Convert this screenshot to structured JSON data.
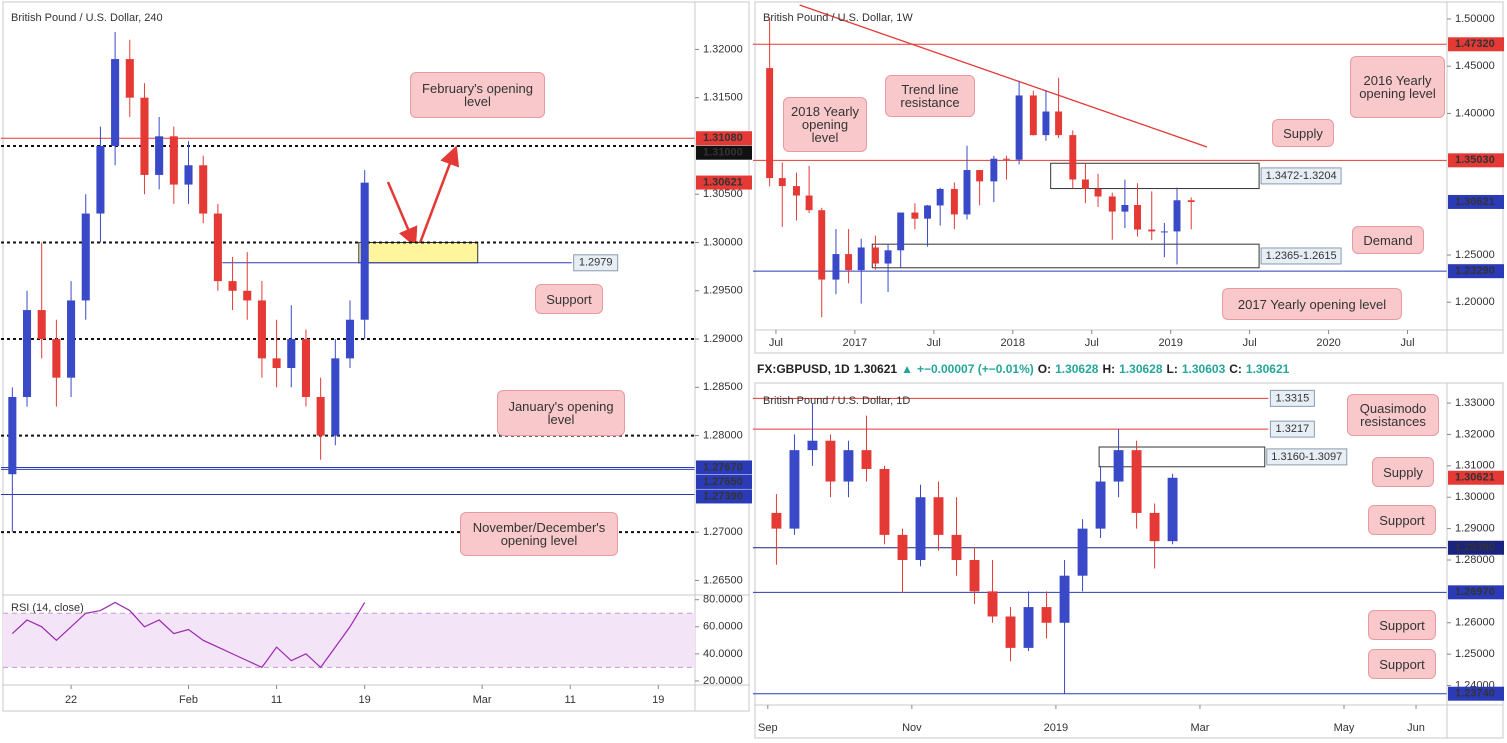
{
  "chart_data": [
    {
      "type": "candlestick",
      "title": "British Pound / U.S. Dollar, 240",
      "up_color": "#3949c8",
      "down_color": "#e53935",
      "xlim": [
        -4.5,
        42.5
      ],
      "xticks": [
        {
          "value": 0,
          "label": "22"
        },
        {
          "value": 8,
          "label": "Feb"
        },
        {
          "value": 14,
          "label": "11"
        },
        {
          "value": 20,
          "label": "19"
        },
        {
          "value": 28,
          "label": "Mar"
        },
        {
          "value": 34,
          "label": "11"
        },
        {
          "value": 40,
          "label": "19"
        }
      ],
      "ylim": [
        1.2638,
        1.3246
      ],
      "yticks": [
        {
          "value": 1.32,
          "label": "1.32000"
        },
        {
          "value": 1.315,
          "label": "1.31500"
        },
        {
          "value": 1.305,
          "label": "1.30500"
        },
        {
          "value": 1.3,
          "label": "1.30000"
        },
        {
          "value": 1.295,
          "label": "1.29500"
        },
        {
          "value": 1.29,
          "label": "1.29000"
        },
        {
          "value": 1.285,
          "label": "1.28500"
        },
        {
          "value": 1.28,
          "label": "1.28000"
        },
        {
          "value": 1.27,
          "label": "1.27000"
        },
        {
          "value": 1.265,
          "label": "1.26500"
        }
      ],
      "candles": {
        "x": [
          -4,
          -3,
          -2,
          -1,
          0,
          1,
          2,
          3,
          4,
          5,
          6,
          7,
          8,
          9,
          10,
          11,
          12,
          13,
          14,
          15,
          16,
          17,
          18,
          19,
          20
        ],
        "open": [
          1.276,
          1.284,
          1.293,
          1.29,
          1.286,
          1.294,
          1.303,
          1.31,
          1.319,
          1.315,
          1.307,
          1.311,
          1.306,
          1.308,
          1.303,
          1.296,
          1.295,
          1.294,
          1.288,
          1.287,
          1.29,
          1.284,
          1.28,
          1.288,
          1.292
        ],
        "high": [
          1.285,
          1.295,
          1.3,
          1.292,
          1.296,
          1.305,
          1.312,
          1.3218,
          1.321,
          1.3165,
          1.313,
          1.312,
          1.3105,
          1.309,
          1.304,
          1.2985,
          1.299,
          1.296,
          1.292,
          1.2935,
          1.291,
          1.286,
          1.29,
          1.294,
          1.3075
        ],
        "low": [
          1.27,
          1.283,
          1.288,
          1.283,
          1.284,
          1.292,
          1.3,
          1.308,
          1.313,
          1.305,
          1.3055,
          1.304,
          1.304,
          1.302,
          1.295,
          1.293,
          1.292,
          1.286,
          1.285,
          1.285,
          1.283,
          1.2775,
          1.279,
          1.287,
          1.29
        ],
        "close": [
          1.284,
          1.293,
          1.29,
          1.286,
          1.294,
          1.303,
          1.31,
          1.319,
          1.315,
          1.307,
          1.311,
          1.306,
          1.308,
          1.303,
          1.296,
          1.295,
          1.294,
          1.288,
          1.287,
          1.29,
          1.284,
          1.28,
          1.288,
          1.292,
          1.3062
        ]
      },
      "levels": [
        {
          "value": 1.3108,
          "color": "#e53935",
          "tag": "1.31080"
        },
        {
          "value": 1.31,
          "color": "#111111",
          "dash": true,
          "tag": "1.31000"
        },
        {
          "value": 1.3,
          "color": "#111111",
          "dash": true
        },
        {
          "value": 1.29,
          "color": "#111111",
          "dash": true
        },
        {
          "value": 1.28,
          "color": "#111111",
          "dash": true
        },
        {
          "value": 1.2767,
          "color": "#2b3bb8",
          "tag": "1.27670"
        },
        {
          "value": 1.2765,
          "color": "#2b3bb8",
          "tag": "1.27650"
        },
        {
          "value": 1.2739,
          "color": "#2b3bb8",
          "tag": "1.27390"
        },
        {
          "value": 1.27,
          "color": "#111111",
          "dash": true
        },
        {
          "value": 1.2979,
          "color": "#2b3bb8",
          "from": 10.3,
          "to": 34.1,
          "label": "1.2979"
        }
      ],
      "zones": [
        {
          "top": 1.3,
          "bottom": 1.2979,
          "x": [
            19.6,
            27.7
          ],
          "fill": "#fff59d"
        }
      ],
      "last": {
        "value": 1.30621,
        "label": "1.30621",
        "color": "#e53935"
      },
      "annotations": [
        "February's opening level",
        "Support",
        "January's opening level",
        "November/December's opening level"
      ],
      "rsi": {
        "title": "RSI (14, close)",
        "ylim": [
          17,
          82
        ],
        "band": [
          30,
          70
        ],
        "color": "#9c27b0",
        "yticks": [
          {
            "value": 80,
            "label": "80.0000"
          },
          {
            "value": 60,
            "label": "60.0000"
          },
          {
            "value": 40,
            "label": "40.0000"
          },
          {
            "value": 20,
            "label": "20.0000"
          }
        ],
        "values": [
          55,
          65,
          60,
          50,
          60,
          70,
          72,
          78,
          72,
          60,
          65,
          55,
          58,
          50,
          45,
          40,
          35,
          30,
          45,
          35,
          40,
          30,
          45,
          60,
          78
        ]
      }
    },
    {
      "type": "candlestick",
      "title": "British Pound / U.S. Dollar, 1W",
      "up_color": "#3949c8",
      "down_color": "#e53935",
      "xlim": [
        2016.38,
        2020.75
      ],
      "xticks": [
        {
          "value": 2016.5,
          "label": "Jul"
        },
        2017,
        {
          "value": 2017.5,
          "label": "Jul"
        },
        2018,
        {
          "value": 2018.5,
          "label": "Jul"
        },
        2019,
        {
          "value": 2019.5,
          "label": "Jul"
        },
        2020,
        {
          "value": 2020.5,
          "label": "Jul"
        }
      ],
      "ylim": [
        1.1706,
        1.5148
      ],
      "yticks": [
        {
          "value": 1.5,
          "label": "1.50000"
        },
        {
          "value": 1.45,
          "label": "1.45000"
        },
        {
          "value": 1.4,
          "label": "1.40000"
        },
        {
          "value": 1.25,
          "label": "1.25000"
        },
        {
          "value": 1.2,
          "label": "1.20000"
        }
      ],
      "candles": {
        "x": [
          2016.46,
          2016.54,
          2016.63,
          2016.71,
          2016.79,
          2016.88,
          2016.96,
          2017.04,
          2017.13,
          2017.21,
          2017.29,
          2017.38,
          2017.46,
          2017.54,
          2017.63,
          2017.71,
          2017.79,
          2017.88,
          2017.96,
          2018.04,
          2018.13,
          2018.21,
          2018.29,
          2018.38,
          2018.46,
          2018.54,
          2018.63,
          2018.71,
          2018.79,
          2018.88,
          2018.96,
          2019.04,
          2019.13
        ],
        "open": [
          1.448,
          1.3315,
          1.323,
          1.313,
          1.2975,
          1.224,
          1.251,
          1.234,
          1.258,
          1.241,
          1.255,
          1.295,
          1.2885,
          1.3025,
          1.32,
          1.293,
          1.34,
          1.328,
          1.352,
          1.351,
          1.419,
          1.377,
          1.402,
          1.377,
          1.33,
          1.32,
          1.312,
          1.296,
          1.303,
          1.277,
          1.275,
          1.275,
          1.308
        ],
        "high": [
          1.5018,
          1.348,
          1.3372,
          1.3445,
          1.3,
          1.2775,
          1.2775,
          1.2673,
          1.2706,
          1.2615,
          1.2905,
          1.3048,
          1.303,
          1.3213,
          1.3269,
          1.3657,
          1.34,
          1.355,
          1.355,
          1.4345,
          1.424,
          1.4245,
          1.4377,
          1.382,
          1.347,
          1.336,
          1.316,
          1.3298,
          1.326,
          1.3175,
          1.284,
          1.3215,
          1.311
        ],
        "low": [
          1.3229,
          1.2798,
          1.2866,
          1.2945,
          1.1841,
          1.2085,
          1.22,
          1.1986,
          1.2345,
          1.2109,
          1.2365,
          1.2774,
          1.2589,
          1.2812,
          1.2774,
          1.2876,
          1.3027,
          1.306,
          1.33,
          1.346,
          1.3765,
          1.371,
          1.374,
          1.3205,
          1.305,
          1.301,
          1.2662,
          1.2785,
          1.2696,
          1.2657,
          1.2477,
          1.24,
          1.2773
        ],
        "close": [
          1.3315,
          1.323,
          1.313,
          1.2975,
          1.224,
          1.251,
          1.234,
          1.258,
          1.241,
          1.255,
          1.295,
          1.2885,
          1.3025,
          1.32,
          1.293,
          1.34,
          1.328,
          1.352,
          1.351,
          1.419,
          1.377,
          1.402,
          1.377,
          1.33,
          1.32,
          1.312,
          1.296,
          1.303,
          1.277,
          1.275,
          1.275,
          1.308,
          1.3062
        ]
      },
      "levels": [
        {
          "value": 1.4732,
          "color": "#e53935",
          "tag": "1.47320"
        },
        {
          "value": 1.3503,
          "color": "#e53935",
          "tag": "1.35030"
        },
        {
          "value": 1.2329,
          "color": "#2b3bb8",
          "tag": "1.23290"
        }
      ],
      "zones": [
        {
          "label": "1.3472-1.3204",
          "top": 1.3472,
          "bottom": 1.3204,
          "x": [
            2018.24,
            2019.56
          ]
        },
        {
          "label": "1.2365-1.2615",
          "top": 1.2615,
          "bottom": 1.2365,
          "x": [
            2017.11,
            2019.56
          ]
        }
      ],
      "trendlines": [
        {
          "x": [
            2016.65,
            2019.23
          ],
          "y": [
            1.5148,
            1.3644
          ],
          "color": "#e53935"
        }
      ],
      "last": {
        "value": 1.30621,
        "label": "1.30621",
        "color": "#2b3bb8"
      },
      "annotations": [
        "Trend line resistance",
        "2018 Yearly opening level",
        "Supply",
        "Demand",
        "2016 Yearly opening level",
        "2017 Yearly opening level"
      ]
    },
    {
      "type": "candlestick",
      "title": "British Pound / U.S. Dollar, 1D",
      "header": [
        {
          "text": "FX:GBPUSD, 1D",
          "color": "#222222"
        },
        {
          "text": "1.30621",
          "color": "#222222"
        },
        {
          "text": "▲",
          "color": "#26a69a"
        },
        {
          "text": "+−0.00007 (+−0.01%)",
          "color": "#26a69a"
        },
        {
          "text": "O:",
          "color": "#222222"
        },
        {
          "text": "1.30628",
          "color": "#26a69a"
        },
        {
          "text": "H:",
          "color": "#222222"
        },
        {
          "text": "1.30628",
          "color": "#26a69a"
        },
        {
          "text": "L:",
          "color": "#222222"
        },
        {
          "text": "1.30603",
          "color": "#26a69a"
        },
        {
          "text": "C:",
          "color": "#222222"
        },
        {
          "text": "1.30621",
          "color": "#26a69a"
        }
      ],
      "up_color": "#3949c8",
      "down_color": "#e53935",
      "xlim": [
        -0.15,
        9.43
      ],
      "xticks": [
        {
          "value": 0,
          "label": "Sep"
        },
        {
          "value": 2,
          "label": "Nov"
        },
        {
          "value": 4,
          "label": "2019"
        },
        {
          "value": 6,
          "label": "Mar"
        },
        {
          "value": 8,
          "label": "May"
        },
        {
          "value": 9,
          "label": "Jun"
        }
      ],
      "ylim": [
        1.2338,
        1.3348
      ],
      "yticks": [
        {
          "value": 1.33,
          "label": "1.33000"
        },
        {
          "value": 1.32,
          "label": "1.32000"
        },
        {
          "value": 1.31,
          "label": "1.31000"
        },
        {
          "value": 1.3,
          "label": "1.30000"
        },
        {
          "value": 1.29,
          "label": "1.29000"
        },
        {
          "value": 1.28,
          "label": "1.28000"
        },
        {
          "value": 1.26,
          "label": "1.26000"
        },
        {
          "value": 1.25,
          "label": "1.25000"
        },
        {
          "value": 1.24,
          "label": "1.24000"
        }
      ],
      "candles": {
        "x": [
          0.12,
          0.37,
          0.62,
          0.87,
          1.12,
          1.37,
          1.62,
          1.87,
          2.12,
          2.37,
          2.62,
          2.87,
          3.12,
          3.37,
          3.62,
          3.87,
          4.12,
          4.37,
          4.62,
          4.87,
          5.12,
          5.37,
          5.62
        ],
        "open": [
          1.295,
          1.29,
          1.315,
          1.318,
          1.305,
          1.315,
          1.309,
          1.288,
          1.28,
          1.3,
          1.288,
          1.28,
          1.27,
          1.262,
          1.252,
          1.265,
          1.26,
          1.275,
          1.29,
          1.305,
          1.315,
          1.295,
          1.286
        ],
        "high": [
          1.301,
          1.32,
          1.3298,
          1.32,
          1.318,
          1.326,
          1.31,
          1.29,
          1.304,
          1.305,
          1.3,
          1.284,
          1.28,
          1.265,
          1.27,
          1.27,
          1.28,
          1.293,
          1.31,
          1.3217,
          1.318,
          1.298,
          1.3075
        ],
        "low": [
          1.2785,
          1.288,
          1.31,
          1.3,
          1.3,
          1.305,
          1.285,
          1.2696,
          1.278,
          1.283,
          1.275,
          1.266,
          1.26,
          1.2477,
          1.251,
          1.255,
          1.2374,
          1.27,
          1.287,
          1.3,
          1.29,
          1.2773,
          1.285
        ],
        "close": [
          1.29,
          1.315,
          1.318,
          1.305,
          1.315,
          1.309,
          1.288,
          1.28,
          1.3,
          1.288,
          1.28,
          1.27,
          1.262,
          1.252,
          1.265,
          1.26,
          1.275,
          1.29,
          1.305,
          1.315,
          1.295,
          1.286,
          1.3062
        ]
      },
      "levels": [
        {
          "value": 1.3315,
          "color": "#e53935",
          "to": 6.95,
          "label": "1.3315"
        },
        {
          "value": 1.3217,
          "color": "#e53935",
          "to": 6.95,
          "label": "1.3217"
        },
        {
          "value": 1.2839,
          "color": "#1a237e",
          "tag": "1.28390"
        },
        {
          "value": 1.2697,
          "color": "#2b3bb8",
          "tag": "1.26970"
        },
        {
          "value": 1.2374,
          "color": "#2b3bb8",
          "tag": "1.23740"
        }
      ],
      "zones": [
        {
          "label": "1.3160-1.3097",
          "top": 1.316,
          "bottom": 1.3097,
          "x": [
            4.6,
            6.9
          ]
        }
      ],
      "last": {
        "value": 1.30621,
        "label": "1.30621",
        "color": "#e53935"
      },
      "annotations": [
        "Quasimodo resistances",
        "Supply",
        "Support",
        "Support",
        "Support"
      ]
    }
  ]
}
